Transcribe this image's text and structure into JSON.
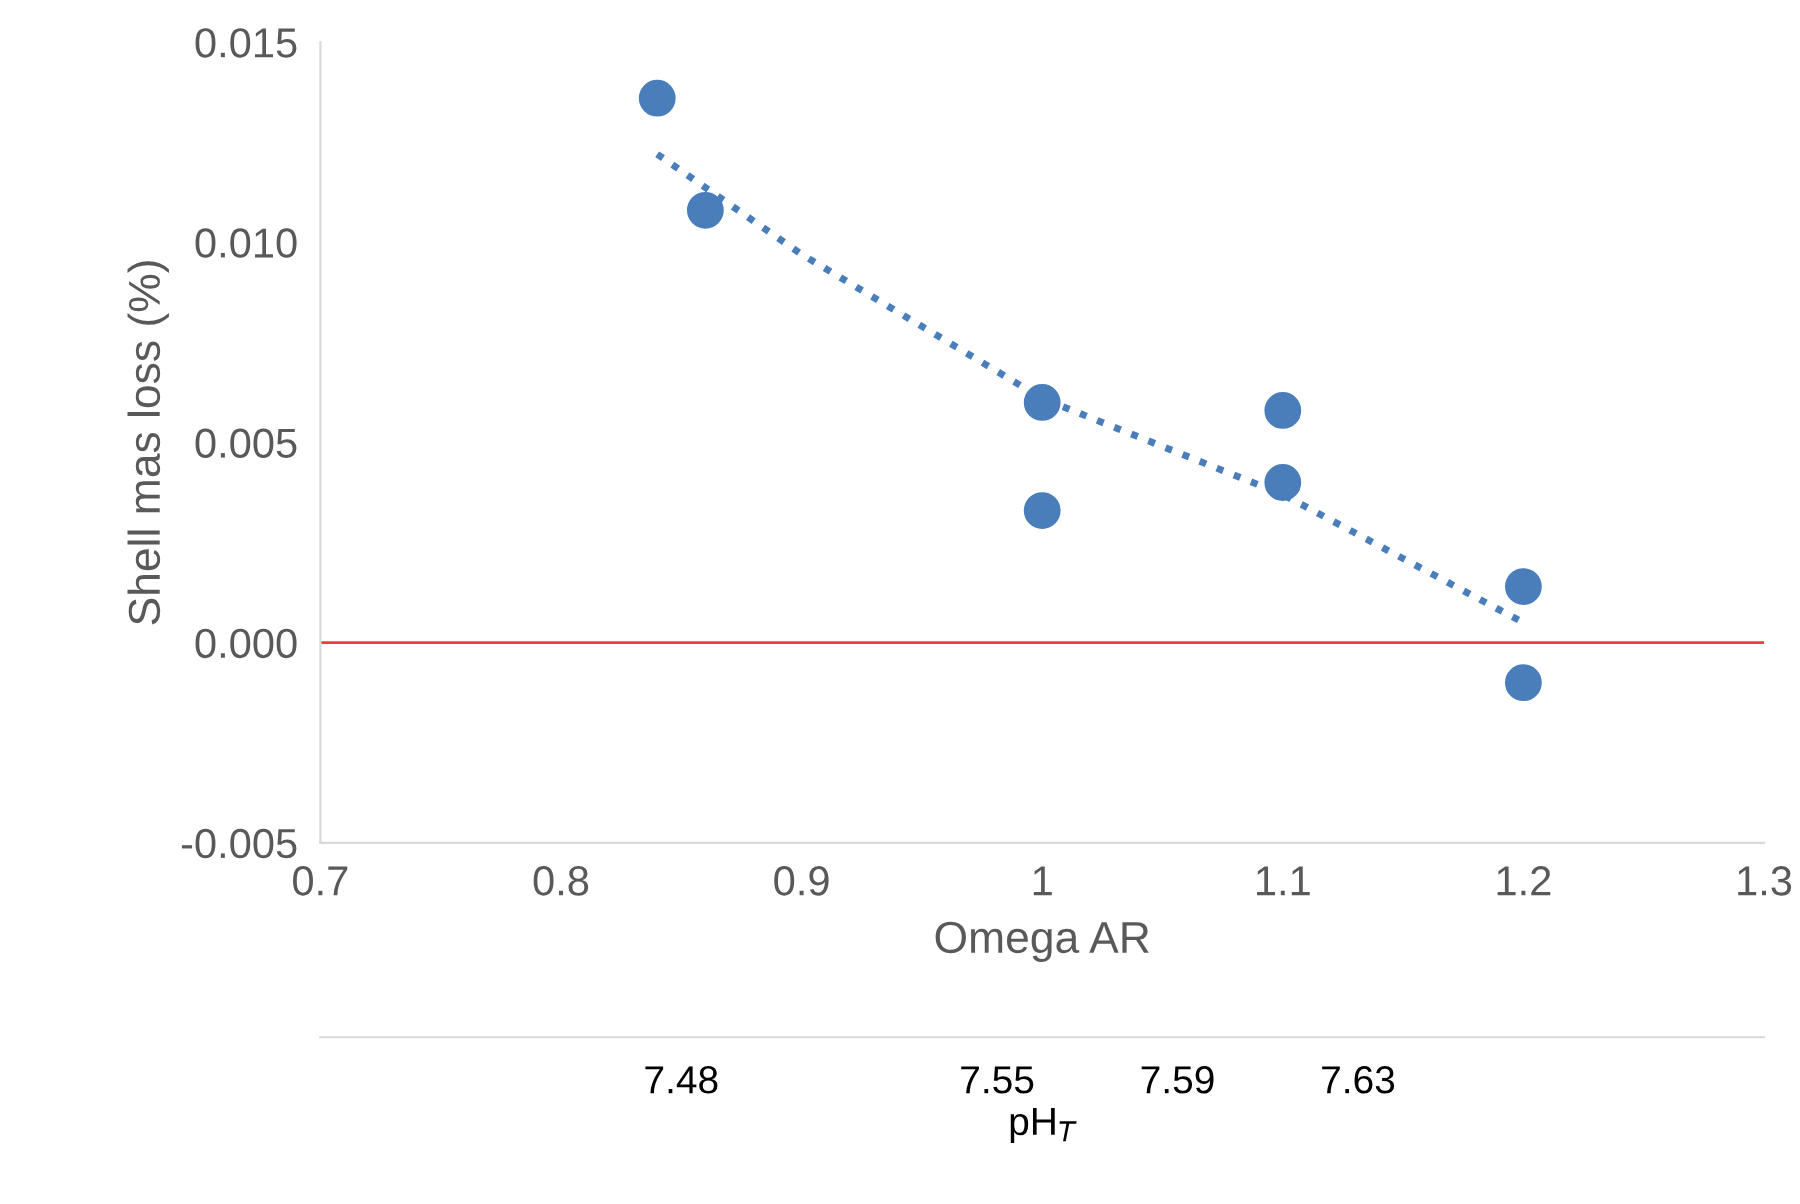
{
  "chart_data": {
    "type": "scatter",
    "xlabel": "Omega AR",
    "ylabel": "Shell mas loss (%)",
    "x2label": "pH$_{T}$",
    "xlim": [
      0.7,
      1.3
    ],
    "xticks": [
      0.7,
      0.8,
      0.9,
      1,
      1.1,
      1.2,
      1.3
    ],
    "ylim": [
      -0.005,
      0.015
    ],
    "yticks": [
      {
        "value": -0.005,
        "label": "-0.005"
      },
      {
        "value": 0,
        "label": "0.000"
      },
      {
        "value": 0.005,
        "label": "0.005"
      },
      {
        "value": 0.01,
        "label": "0.010"
      },
      {
        "value": 0.015,
        "label": "0.015"
      }
    ],
    "x2lim": [
      7.4,
      7.72
    ],
    "x2ticks": [
      7.48,
      7.55,
      7.59,
      7.63
    ],
    "grid": false,
    "series": [
      {
        "color": "#4a7ebb",
        "marker": "circle",
        "x": [
          0.84,
          0.86,
          1.0,
          1.0,
          1.1,
          1.1,
          1.2,
          1.2
        ],
        "values": [
          0.0136,
          0.0108,
          0.006,
          0.0033,
          0.0058,
          0.004,
          0.0014,
          -0.001
        ]
      },
      {
        "type": "line",
        "color": "#4a7ebb",
        "marker": "none",
        "line_style": "dotted",
        "x": [
          0.84,
          0.9,
          1.0,
          1.1,
          1.2
        ],
        "values": [
          0.0122,
          0.0097,
          0.0061,
          0.0037,
          0.0005
        ]
      }
    ],
    "ref_lines": [
      {
        "axis": "y",
        "value": 0,
        "label": null,
        "color": "#e8413a",
        "line_style": "solid"
      }
    ]
  }
}
